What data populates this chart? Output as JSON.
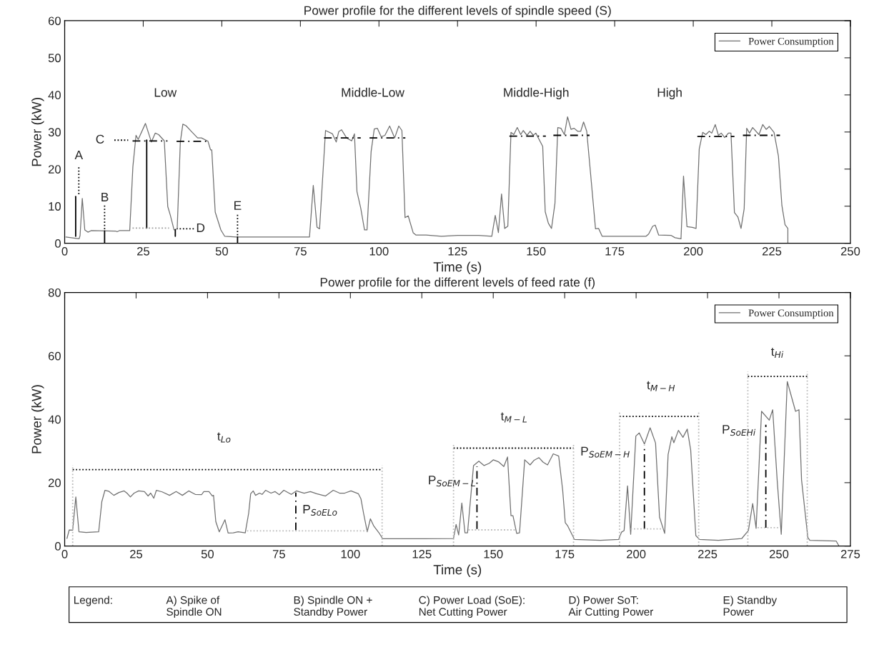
{
  "chart_data": [
    {
      "type": "line",
      "title": "Power profile for the different levels of spindle speed (S)",
      "xlabel": "Time (s)",
      "ylabel": "Power (kW)",
      "xlim": [
        0,
        250
      ],
      "xticks": [
        0,
        25,
        50,
        75,
        100,
        125,
        150,
        175,
        200,
        225,
        250
      ],
      "ylim": [
        0,
        60
      ],
      "yticks": [
        0,
        10,
        20,
        30,
        40,
        50,
        60
      ],
      "legend": "top right",
      "series": [
        {
          "name": "Power Consumption",
          "color": "#707070",
          "x": [
            0.4,
            4.6,
            4.9,
            5.6,
            6.4,
            7.4,
            8.4,
            16.2,
            16.7,
            17.4,
            20.7,
            21.7,
            22.7,
            23.4,
            25.7,
            27.6,
            28.8,
            29.9,
            31.7,
            32.8,
            33.6,
            34.8,
            35.8,
            36.8,
            37.6,
            38.6,
            40.6,
            42.3,
            43.5,
            45.6,
            46.4,
            46.8,
            47.9,
            49.7,
            50.9,
            54.6,
            77.9,
            79.1,
            80.3,
            81.1,
            83,
            85.2,
            86.4,
            87.2,
            88.1,
            89.7,
            91.3,
            92.2,
            93,
            94.2,
            95.4,
            96.2,
            97.5,
            98.5,
            99.5,
            100.7,
            101.9,
            103.4,
            105,
            106.3,
            107.3,
            108.3,
            109.3,
            110.9,
            111.8,
            115,
            119.9,
            125,
            131.7,
            135.9,
            137,
            138,
            139,
            140,
            141,
            142,
            142.9,
            144,
            145.1,
            145.9,
            147.1,
            148.1,
            149.1,
            149.9,
            152.1,
            152.9,
            153.9,
            154.9,
            156,
            156.9,
            157.9,
            159,
            160,
            161.1,
            162.1,
            163.2,
            164.2,
            165.1,
            166.1,
            167.2,
            168.9,
            169.9,
            171,
            175,
            185,
            185.8,
            187.1,
            187.9,
            189,
            193,
            194.2,
            196.1,
            196.9,
            198,
            199.7,
            200.9,
            201.9,
            203,
            204,
            205.1,
            205.9,
            207,
            208,
            208.9,
            210,
            211.2,
            212,
            213.1,
            214.2,
            215.2,
            216.2,
            217,
            217.9,
            218.9,
            220.9,
            222.1,
            223.2,
            224.2,
            225.7,
            227.1,
            228.2,
            229.2,
            230.1,
            230.1
          ],
          "values": [
            1.7,
            1.2,
            2.1,
            12.1,
            3.6,
            3.0,
            3.4,
            3.3,
            3.1,
            3.4,
            3.4,
            20.6,
            29.1,
            28,
            32.3,
            27.3,
            29.7,
            29.3,
            27.6,
            9.9,
            7.6,
            3.6,
            3.9,
            27.3,
            32.1,
            31.7,
            29.9,
            28.4,
            28.4,
            27.5,
            25.2,
            25.2,
            8.4,
            3.6,
            1.9,
            1.7,
            1.7,
            15.6,
            4.3,
            3.9,
            30.4,
            29.5,
            27.3,
            30.1,
            30.6,
            28.4,
            27.6,
            29.5,
            13.9,
            9.5,
            3.6,
            3.6,
            24.7,
            30.8,
            31,
            28.7,
            29.1,
            31.6,
            28.4,
            31.6,
            30.4,
            6.9,
            7.4,
            2.8,
            2.2,
            2.2,
            1.9,
            2.1,
            2.1,
            1.9,
            7.5,
            2.9,
            13.3,
            4.0,
            4.6,
            29.9,
            29.3,
            31.2,
            29.3,
            30.4,
            29.1,
            30.2,
            29.1,
            29.7,
            26.1,
            8.5,
            5.4,
            4.0,
            10.8,
            31.2,
            31,
            29.3,
            34.1,
            30.7,
            31,
            30.2,
            30.2,
            32.7,
            30.2,
            20,
            3.9,
            4.0,
            1.9,
            1.9,
            1.9,
            2.5,
            4.6,
            4.9,
            2.2,
            2.1,
            1.5,
            1.2,
            18.1,
            4.5,
            4.3,
            4.0,
            25.4,
            29.9,
            29.3,
            30.2,
            29.7,
            32,
            29.1,
            29.7,
            28.5,
            29.7,
            29.7,
            8.3,
            7.1,
            4.0,
            9.3,
            31,
            29.7,
            31.2,
            29.3,
            32,
            30.7,
            31.5,
            29.9,
            23.5,
            10.2,
            5.0,
            4.0,
            0
          ]
        },
        {
          "type": "line",
          "color": "#000000",
          "line_style": "dashed",
          "x": [
            21.6,
            32.7
          ],
          "values": [
            27.6,
            27.6
          ]
        },
        {
          "type": "line",
          "color": "#000000",
          "line_style": "dashed",
          "x": [
            35.6,
            45.6
          ],
          "values": [
            27.5,
            27.5
          ]
        },
        {
          "type": "line",
          "color": "#000000",
          "line_style": "dashed",
          "x": [
            82.5,
            94.2
          ],
          "values": [
            28.4,
            28.4
          ]
        },
        {
          "type": "line",
          "color": "#000000",
          "line_style": "dashed",
          "x": [
            97,
            108.4
          ],
          "values": [
            28.4,
            28.4
          ]
        },
        {
          "type": "line",
          "color": "#000000",
          "line_style": "dashed",
          "x": [
            141.5,
            153.1
          ],
          "values": [
            28.9,
            28.9
          ]
        },
        {
          "type": "line",
          "color": "#000000",
          "line_style": "dashed",
          "x": [
            155.5,
            167
          ],
          "values": [
            29.1,
            29.1
          ]
        },
        {
          "type": "line",
          "color": "#000000",
          "line_style": "dashed",
          "x": [
            201.3,
            213.1
          ],
          "values": [
            28.8,
            28.8
          ]
        },
        {
          "type": "line",
          "color": "#000000",
          "line_style": "dashed",
          "x": [
            215.8,
            227.6
          ],
          "values": [
            29.1,
            29.1
          ]
        },
        {
          "type": "line",
          "color": "#000000",
          "line_style": "solid",
          "x": [
            3.5,
            3.5
          ],
          "values": [
            1.9,
            12.6
          ]
        },
        {
          "type": "line",
          "color": "#000000",
          "line_style": "solid",
          "x": [
            12.7,
            12.7
          ],
          "values": [
            0,
            3.3
          ]
        },
        {
          "type": "line",
          "color": "#000000",
          "line_style": "solid",
          "x": [
            26.1,
            26.1
          ],
          "values": [
            4.1,
            27.8
          ]
        },
        {
          "type": "line",
          "color": "#000000",
          "line_style": "solid",
          "x": [
            35.2,
            35.2
          ],
          "values": [
            1.9,
            3.6
          ]
        },
        {
          "type": "line",
          "color": "#000000",
          "line_style": "solid",
          "x": [
            55,
            55
          ],
          "values": [
            0.2,
            1.7
          ]
        },
        {
          "type": "line",
          "color": "#999999",
          "line_style": "dotted",
          "x": [
            21.6,
            33.2
          ],
          "values": [
            4.1,
            4.1
          ]
        },
        {
          "type": "line",
          "color": "#000000",
          "line_style": "dotted",
          "x": [
            4.5,
            4.5
          ],
          "values": [
            20.5,
            12.8
          ]
        },
        {
          "type": "line",
          "color": "#000000",
          "line_style": "dotted",
          "x": [
            12.7,
            12.7
          ],
          "values": [
            10.2,
            3.5
          ]
        },
        {
          "type": "line",
          "color": "#000000",
          "line_style": "dotted",
          "x": [
            15.8,
            20.2
          ],
          "values": [
            27.8,
            27.8
          ]
        },
        {
          "type": "line",
          "color": "#000000",
          "line_style": "dotted",
          "x": [
            41.1,
            35.8
          ],
          "values": [
            3.9,
            3.9
          ]
        },
        {
          "type": "line",
          "color": "#000000",
          "line_style": "dotted",
          "x": [
            55,
            55
          ],
          "values": [
            7.7,
            2
          ]
        }
      ],
      "annotations": [
        "Low",
        "Middle-Low",
        "Middle-High",
        "High",
        "A",
        "B",
        "C",
        "D",
        "E"
      ]
    },
    {
      "type": "line",
      "title": "Power profile for the different levels of feed rate (f)",
      "xlabel": "Time (s)",
      "ylabel": "Power (kW)",
      "xlim": [
        0,
        275
      ],
      "xticks": [
        0,
        25,
        50,
        75,
        100,
        125,
        150,
        175,
        200,
        225,
        250,
        275
      ],
      "ylim": [
        0,
        80
      ],
      "yticks": [
        0,
        20,
        40,
        60,
        80
      ],
      "legend": "top right",
      "series": [
        {
          "name": "Power Consumption",
          "color": "#707070",
          "x": [
            0.8,
            1.6,
            2.8,
            3.9,
            5,
            7.5,
            11.9,
            13,
            14.1,
            15.4,
            17.2,
            19,
            20.8,
            21.8,
            23,
            24.3,
            25.9,
            27.9,
            29.2,
            30.1,
            31.2,
            32.1,
            34.1,
            36.7,
            39,
            41.2,
            43.4,
            45.7,
            47.9,
            48.7,
            50.5,
            51.7,
            52.1,
            52.9,
            54.1,
            56.1,
            57.2,
            59,
            60.7,
            63.2,
            64.4,
            65.1,
            66,
            66.8,
            68.2,
            69.1,
            70.3,
            72.2,
            73.6,
            75.1,
            76.7,
            79.3,
            81.1,
            83.8,
            86,
            88.2,
            91.3,
            94,
            96.2,
            98,
            100.2,
            102.8,
            103.7,
            104.6,
            105.9,
            107,
            108.2,
            110,
            111.3,
            113.9,
            125,
            136.1,
            137,
            137.9,
            139,
            140.1,
            141,
            143.1,
            144.96,
            146.8,
            148.6,
            150,
            151.8,
            153.7,
            155,
            156.2,
            156.9,
            158.2,
            159.2,
            161,
            162.9,
            164.2,
            166,
            167.4,
            169,
            171,
            172.9,
            174.3,
            175.2,
            176.1,
            178.4,
            187.5,
            193.9,
            194.9,
            195.8,
            197,
            198.1,
            199.9,
            201.1,
            202.9,
            204.9,
            206.8,
            208.2,
            210,
            211.2,
            212.5,
            213.2,
            214.8,
            216.4,
            217.9,
            219.1,
            220.9,
            222.2,
            228.8,
            237,
            239.3,
            240.8,
            242,
            243.9,
            246.6,
            247.8,
            249.4,
            250.8,
            252.9,
            255.8,
            257,
            257.9,
            260.1,
            260.8,
            270,
            270.9
          ],
          "values": [
            2.4,
            5.1,
            5.0,
            15.5,
            4.5,
            4.3,
            4.5,
            14,
            17.6,
            17.3,
            16,
            16.9,
            17.4,
            16.7,
            15.5,
            16.7,
            17.4,
            17.2,
            15.8,
            16.7,
            15.1,
            17.6,
            17.1,
            16,
            17.2,
            16,
            17.4,
            16.3,
            16.2,
            17.2,
            17.2,
            15.8,
            16,
            7.7,
            4.5,
            8.3,
            4.1,
            4.2,
            4.5,
            4.2,
            10.4,
            16.5,
            17.4,
            16,
            16.7,
            16.3,
            17.6,
            16.7,
            17.2,
            16.2,
            17.6,
            16.3,
            17.4,
            16.7,
            17.2,
            16.5,
            15.8,
            17.6,
            16.7,
            16.7,
            17.4,
            16.5,
            14.9,
            10.4,
            4.5,
            8.6,
            6.3,
            4.2,
            2.3,
            2.3,
            2.3,
            2.4,
            6.8,
            3.5,
            13.6,
            4.2,
            4.2,
            25.4,
            26.8,
            25.4,
            26.1,
            27.2,
            26.6,
            25.1,
            28.1,
            9.6,
            9.6,
            4.0,
            4.2,
            27.2,
            25.6,
            27,
            27.9,
            26.5,
            25.6,
            29.1,
            28.4,
            17.6,
            7.4,
            6.3,
            2.1,
            1.8,
            2.1,
            4.4,
            4.9,
            19,
            3.7,
            34.7,
            35.7,
            32.2,
            37.3,
            32.5,
            9.1,
            4.0,
            28.9,
            34.5,
            32.6,
            36.5,
            34.3,
            36.9,
            30.3,
            3.3,
            2.1,
            1.8,
            2.4,
            4.9,
            13.4,
            5.6,
            42.5,
            39.7,
            43,
            20.4,
            3.7,
            51.9,
            42.5,
            43,
            20.9,
            2.7,
            1.8,
            1.6,
            0.2
          ]
        },
        {
          "type": "line",
          "color": "#000000",
          "line_style": "dotted",
          "x": [
            2.8,
            111.1
          ],
          "values": [
            24.1,
            24.1
          ]
        },
        {
          "type": "line",
          "color": "#000000",
          "line_style": "dotted",
          "x": [
            136.1,
            178.1
          ],
          "values": [
            30.9,
            30.9
          ]
        },
        {
          "type": "line",
          "color": "#000000",
          "line_style": "dotted",
          "x": [
            194.2,
            221.9
          ],
          "values": [
            40.9,
            40.9
          ]
        },
        {
          "type": "line",
          "color": "#000000",
          "line_style": "dotted",
          "x": [
            239.1,
            259.9
          ],
          "values": [
            53.5,
            53.5
          ]
        },
        {
          "type": "line",
          "color": "#bbbbbb",
          "line_style": "dotted",
          "x": [
            2.8,
            2.8
          ],
          "values": [
            0,
            25.5
          ]
        },
        {
          "type": "line",
          "color": "#bbbbbb",
          "line_style": "dotted",
          "x": [
            111.1,
            111.1
          ],
          "values": [
            0,
            25.5
          ]
        },
        {
          "type": "line",
          "color": "#bbbbbb",
          "line_style": "dotted",
          "x": [
            136.1,
            136.1
          ],
          "values": [
            0,
            32.3
          ]
        },
        {
          "type": "line",
          "color": "#bbbbbb",
          "line_style": "dotted",
          "x": [
            178.1,
            178.1
          ],
          "values": [
            0,
            32.3
          ]
        },
        {
          "type": "line",
          "color": "#bbbbbb",
          "line_style": "dotted",
          "x": [
            194.2,
            194.2
          ],
          "values": [
            0,
            42.3
          ]
        },
        {
          "type": "line",
          "color": "#bbbbbb",
          "line_style": "dotted",
          "x": [
            221.9,
            221.9
          ],
          "values": [
            0,
            42.3
          ]
        },
        {
          "type": "line",
          "color": "#bbbbbb",
          "line_style": "dotted",
          "x": [
            239.1,
            239.1
          ],
          "values": [
            0,
            55
          ]
        },
        {
          "type": "line",
          "color": "#bbbbbb",
          "line_style": "dotted",
          "x": [
            259.9,
            259.9
          ],
          "values": [
            0,
            55
          ]
        },
        {
          "type": "line",
          "color": "#000000",
          "line_style": "dashed",
          "x": [
            80.9,
            80.9
          ],
          "values": [
            5.0,
            16.9
          ]
        },
        {
          "type": "line",
          "color": "#000000",
          "line_style": "dashed",
          "x": [
            144.3,
            144.3
          ],
          "values": [
            5.4,
            25.1
          ]
        },
        {
          "type": "line",
          "color": "#000000",
          "line_style": "dashed",
          "x": [
            202.9,
            202.9
          ],
          "values": [
            5.4,
            31.9
          ]
        },
        {
          "type": "line",
          "color": "#000000",
          "line_style": "dashed",
          "x": [
            245.4,
            245.4
          ],
          "values": [
            5.8,
            38.3
          ]
        },
        {
          "type": "line",
          "color": "#bbbbbb",
          "line_style": "dotted",
          "x": [
            63.8,
            105.9
          ],
          "values": [
            4.8,
            4.8
          ]
        },
        {
          "type": "line",
          "color": "#bbbbbb",
          "line_style": "dotted",
          "x": [
            141.3,
            157.8
          ],
          "values": [
            5.1,
            5.1
          ]
        },
        {
          "type": "line",
          "color": "#bbbbbb",
          "line_style": "dotted",
          "x": [
            198.1,
            209.5
          ],
          "values": [
            5.4,
            5.4
          ]
        },
        {
          "type": "line",
          "color": "#bbbbbb",
          "line_style": "dotted",
          "x": [
            242.5,
            250.3
          ],
          "values": [
            5.8,
            5.8
          ]
        }
      ],
      "annotations": [
        "t$_{Lo}$",
        "t$_{M−L}$",
        "t$_{M−H}$",
        "t$_{Hi}$",
        "P$_{SoELo}$",
        "P$_{SoEM−L}$",
        "P$_{SoEM−H}$",
        "P$_{SoEHi}$",
        "Legend:",
        "A) Spike of\nSpindle ON",
        "B) Spindle ON +\nStandby Power",
        "C) Power Load (SoE):\nNet Cutting Power",
        "D) Power SoT:\nAir Cutting Power",
        "E) Standby\nPower"
      ]
    }
  ]
}
